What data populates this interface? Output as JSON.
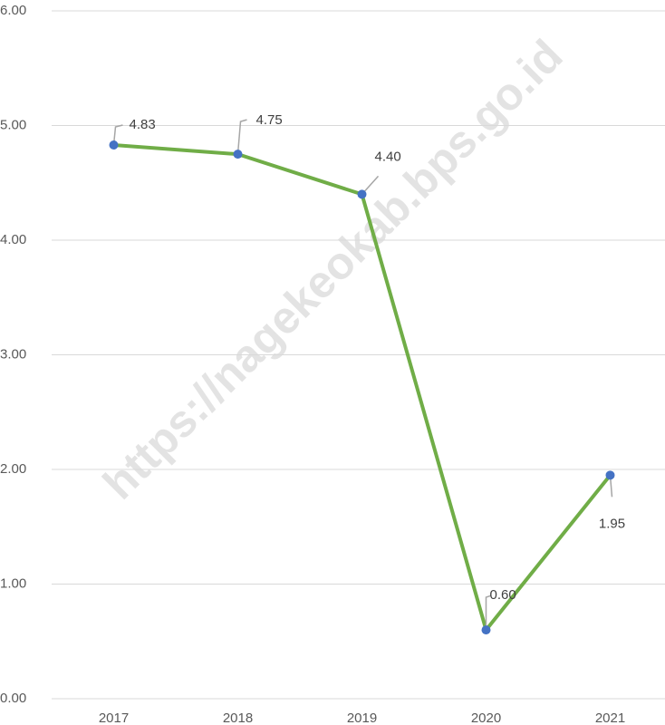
{
  "chart_data": {
    "type": "line",
    "watermark": "https://nagekeokab.bps.go.id",
    "categories": [
      "2017",
      "2018",
      "2019",
      "2020",
      "2021"
    ],
    "series": [
      {
        "color": "#70ad47",
        "marker_color": "#4472c4",
        "values": [
          4.83,
          4.75,
          4.4,
          0.6,
          1.95
        ],
        "value_labels": [
          "4.83",
          "4.75",
          "4.40",
          "0.60",
          "1.95"
        ]
      }
    ],
    "ylim": [
      0,
      6
    ],
    "yticks": [
      {
        "value": 0,
        "label": "0.00"
      },
      {
        "value": 1,
        "label": "1.00"
      },
      {
        "value": 2,
        "label": "2.00"
      },
      {
        "value": 3,
        "label": "3.00"
      },
      {
        "value": 4,
        "label": "4.00"
      },
      {
        "value": 5,
        "label": "5.00"
      },
      {
        "value": 6,
        "label": "6.00"
      }
    ],
    "grid": true
  }
}
